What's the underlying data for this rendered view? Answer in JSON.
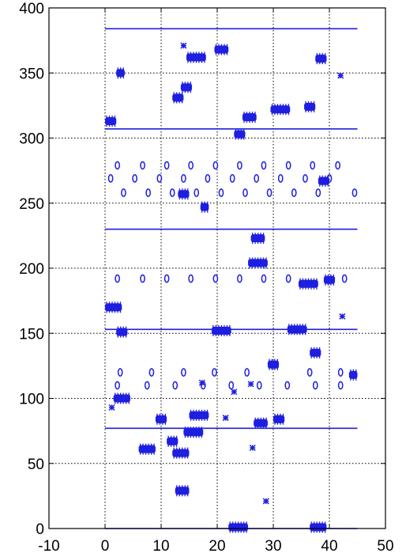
{
  "chart_data": {
    "type": "scatter",
    "title": "",
    "xlabel": "",
    "ylabel": "",
    "xlim": [
      -10,
      50
    ],
    "ylim": [
      0,
      400
    ],
    "grid": true,
    "color": "#1f1fe0",
    "x_ticks": [
      "-10",
      "0",
      "10",
      "20",
      "30",
      "40",
      "50"
    ],
    "y_ticks": [
      "0",
      "50",
      "100",
      "150",
      "200",
      "250",
      "300",
      "350",
      "400"
    ],
    "x_tick_values": [
      -10,
      0,
      10,
      20,
      30,
      40,
      50
    ],
    "y_tick_values": [
      0,
      50,
      100,
      150,
      200,
      250,
      300,
      350,
      400
    ],
    "hlines": [
      {
        "y": 0,
        "x": [
          0,
          45
        ]
      },
      {
        "y": 77,
        "x": [
          0,
          45
        ]
      },
      {
        "y": 153,
        "x": [
          0,
          45
        ]
      },
      {
        "y": 230,
        "x": [
          0,
          45
        ]
      },
      {
        "y": 307,
        "x": [
          0,
          45
        ]
      },
      {
        "y": 384,
        "x": [
          0,
          45
        ]
      }
    ],
    "blocks": [
      {
        "x": [
          0,
          2
        ],
        "y": 313
      },
      {
        "x": [
          2,
          3.5
        ],
        "y": 350
      },
      {
        "x": [
          12,
          14
        ],
        "y": 331
      },
      {
        "x": [
          13.5,
          15.5
        ],
        "y": 339
      },
      {
        "x": [
          14.5,
          18
        ],
        "y": 362
      },
      {
        "x": [
          19.5,
          22
        ],
        "y": 368
      },
      {
        "x": [
          24.5,
          27
        ],
        "y": 316
      },
      {
        "x": [
          23,
          25
        ],
        "y": 303
      },
      {
        "x": [
          29.5,
          33
        ],
        "y": 322
      },
      {
        "x": [
          35.5,
          37.5
        ],
        "y": 324
      },
      {
        "x": [
          37.5,
          39.5
        ],
        "y": 361
      },
      {
        "x": [
          13,
          15
        ],
        "y": 257
      },
      {
        "x": [
          17,
          18.5
        ],
        "y": 247
      },
      {
        "x": [
          26,
          28.5
        ],
        "y": 223
      },
      {
        "x": [
          25.5,
          29
        ],
        "y": 204
      },
      {
        "x": [
          38,
          40
        ],
        "y": 267
      },
      {
        "x": [
          0,
          3
        ],
        "y": 170
      },
      {
        "x": [
          2,
          4
        ],
        "y": 151
      },
      {
        "x": [
          19,
          22.5
        ],
        "y": 152
      },
      {
        "x": [
          32.5,
          36
        ],
        "y": 153
      },
      {
        "x": [
          34.5,
          38
        ],
        "y": 188
      },
      {
        "x": [
          39,
          41
        ],
        "y": 191
      },
      {
        "x": [
          1.5,
          4.5
        ],
        "y": 100
      },
      {
        "x": [
          9,
          11
        ],
        "y": 84
      },
      {
        "x": [
          15,
          18.5
        ],
        "y": 87
      },
      {
        "x": [
          11,
          13
        ],
        "y": 67
      },
      {
        "x": [
          6,
          9
        ],
        "y": 61
      },
      {
        "x": [
          12,
          15
        ],
        "y": 58
      },
      {
        "x": [
          14,
          17.5
        ],
        "y": 74
      },
      {
        "x": [
          12.5,
          15
        ],
        "y": 29
      },
      {
        "x": [
          26.5,
          29
        ],
        "y": 81
      },
      {
        "x": [
          30,
          32
        ],
        "y": 84
      },
      {
        "x": [
          29,
          31
        ],
        "y": 126
      },
      {
        "x": [
          36.5,
          38.5
        ],
        "y": 135
      },
      {
        "x": [
          43.5,
          45
        ],
        "y": 118
      },
      {
        "x": [
          22,
          25.5
        ],
        "y": 1
      },
      {
        "x": [
          36.5,
          39.5
        ],
        "y": 1
      }
    ],
    "stars": [
      {
        "x": 14,
        "y": 371
      },
      {
        "x": 42,
        "y": 348
      },
      {
        "x": 1.2,
        "y": 93
      },
      {
        "x": 17.3,
        "y": 112
      },
      {
        "x": 21.5,
        "y": 85
      },
      {
        "x": 23,
        "y": 105
      },
      {
        "x": 26,
        "y": 111
      },
      {
        "x": 26.3,
        "y": 62
      },
      {
        "x": 28.7,
        "y": 21
      },
      {
        "x": 42.3,
        "y": 163
      }
    ],
    "ovals": [
      {
        "x": 2.2,
        "y": 279
      },
      {
        "x": 6.7,
        "y": 279
      },
      {
        "x": 11,
        "y": 279
      },
      {
        "x": 15.3,
        "y": 279
      },
      {
        "x": 19.7,
        "y": 279
      },
      {
        "x": 24,
        "y": 279
      },
      {
        "x": 28.3,
        "y": 279
      },
      {
        "x": 32.7,
        "y": 279
      },
      {
        "x": 37,
        "y": 279
      },
      {
        "x": 41.5,
        "y": 279
      },
      {
        "x": 1,
        "y": 269
      },
      {
        "x": 5.3,
        "y": 269
      },
      {
        "x": 9.7,
        "y": 269
      },
      {
        "x": 14,
        "y": 269
      },
      {
        "x": 18.3,
        "y": 269
      },
      {
        "x": 22.7,
        "y": 269
      },
      {
        "x": 27,
        "y": 269
      },
      {
        "x": 31.3,
        "y": 269
      },
      {
        "x": 35.7,
        "y": 269
      },
      {
        "x": 40,
        "y": 269
      },
      {
        "x": 3.3,
        "y": 258
      },
      {
        "x": 7.7,
        "y": 258
      },
      {
        "x": 12,
        "y": 258
      },
      {
        "x": 16.3,
        "y": 258
      },
      {
        "x": 20.7,
        "y": 258
      },
      {
        "x": 25,
        "y": 258
      },
      {
        "x": 29.3,
        "y": 258
      },
      {
        "x": 33.7,
        "y": 258
      },
      {
        "x": 38,
        "y": 258
      },
      {
        "x": 44.5,
        "y": 258
      },
      {
        "x": 2.2,
        "y": 192
      },
      {
        "x": 6.7,
        "y": 192
      },
      {
        "x": 11,
        "y": 192
      },
      {
        "x": 15.3,
        "y": 192
      },
      {
        "x": 19.7,
        "y": 192
      },
      {
        "x": 24,
        "y": 192
      },
      {
        "x": 28.3,
        "y": 192
      },
      {
        "x": 32.7,
        "y": 192
      },
      {
        "x": 42.7,
        "y": 192
      },
      {
        "x": 2.7,
        "y": 120
      },
      {
        "x": 8.3,
        "y": 120
      },
      {
        "x": 14,
        "y": 120
      },
      {
        "x": 19.5,
        "y": 120
      },
      {
        "x": 25.3,
        "y": 120
      },
      {
        "x": 36.5,
        "y": 120
      },
      {
        "x": 42,
        "y": 120
      },
      {
        "x": 2.2,
        "y": 110
      },
      {
        "x": 7.5,
        "y": 110
      },
      {
        "x": 12.5,
        "y": 110
      },
      {
        "x": 17.5,
        "y": 110
      },
      {
        "x": 22.5,
        "y": 110
      },
      {
        "x": 27.5,
        "y": 110
      },
      {
        "x": 32.5,
        "y": 110
      },
      {
        "x": 37.5,
        "y": 110
      },
      {
        "x": 42,
        "y": 110
      }
    ]
  }
}
